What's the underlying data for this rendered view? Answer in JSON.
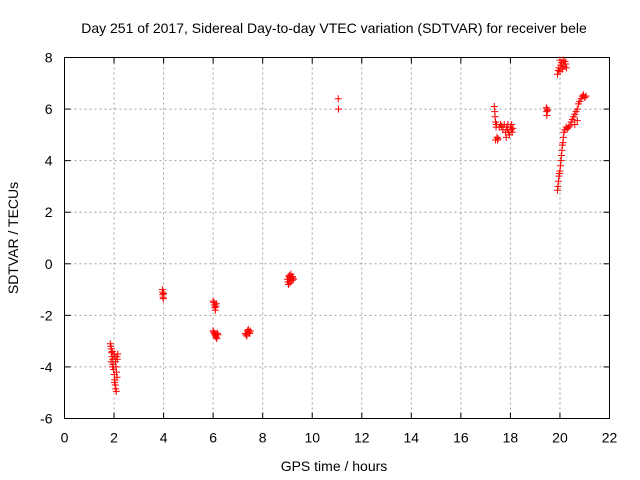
{
  "chart_data": {
    "type": "scatter",
    "title": "Day 251 of 2017, Sidereal Day-to-day VTEC variation (SDTVAR) for receiver bele",
    "xlabel": "GPS time / hours",
    "ylabel": "SDTVAR / TECUs",
    "xlim": [
      0,
      22
    ],
    "ylim": [
      -6,
      8
    ],
    "x_ticks": [
      "0",
      "2",
      "4",
      "6",
      "8",
      "10",
      "12",
      "14",
      "16",
      "18",
      "20",
      "22"
    ],
    "y_ticks": [
      "-6",
      "-4",
      "-2",
      "0",
      "2",
      "4",
      "6",
      "8"
    ],
    "grid": true,
    "marker": "+",
    "color": "#ff0000",
    "series": [
      {
        "name": "SDTVAR",
        "points": [
          [
            1.85,
            -3.1
          ],
          [
            1.87,
            -3.2
          ],
          [
            1.89,
            -3.3
          ],
          [
            1.9,
            -3.45
          ],
          [
            1.92,
            -3.6
          ],
          [
            1.93,
            -3.4
          ],
          [
            1.95,
            -3.7
          ],
          [
            1.96,
            -3.9
          ],
          [
            1.98,
            -4.1
          ],
          [
            2.0,
            -3.5
          ],
          [
            2.01,
            -4.3
          ],
          [
            2.03,
            -4.5
          ],
          [
            2.04,
            -3.6
          ],
          [
            2.05,
            -4.7
          ],
          [
            2.06,
            -3.8
          ],
          [
            2.07,
            -4.85
          ],
          [
            2.08,
            -4.0
          ],
          [
            2.09,
            -4.95
          ],
          [
            2.1,
            -4.2
          ],
          [
            2.11,
            -3.6
          ],
          [
            2.12,
            -4.4
          ],
          [
            2.13,
            -3.7
          ],
          [
            2.15,
            -3.5
          ],
          [
            1.88,
            -3.8
          ],
          [
            1.94,
            -4.0
          ],
          [
            2.02,
            -4.6
          ],
          [
            3.95,
            -1.0
          ],
          [
            3.96,
            -1.1
          ],
          [
            3.97,
            -1.2
          ],
          [
            3.98,
            -1.3
          ],
          [
            3.99,
            -1.35
          ],
          [
            4.0,
            -1.15
          ],
          [
            6.0,
            -1.45
          ],
          [
            6.03,
            -1.5
          ],
          [
            6.05,
            -1.6
          ],
          [
            6.07,
            -1.7
          ],
          [
            6.09,
            -1.8
          ],
          [
            6.11,
            -1.65
          ],
          [
            6.13,
            -1.55
          ],
          [
            6.0,
            -2.6
          ],
          [
            6.02,
            -2.65
          ],
          [
            6.05,
            -2.7
          ],
          [
            6.07,
            -2.75
          ],
          [
            6.1,
            -2.8
          ],
          [
            6.12,
            -2.85
          ],
          [
            6.15,
            -2.9
          ],
          [
            6.17,
            -2.7
          ],
          [
            6.2,
            -2.75
          ],
          [
            7.3,
            -2.7
          ],
          [
            7.33,
            -2.75
          ],
          [
            7.36,
            -2.8
          ],
          [
            7.39,
            -2.6
          ],
          [
            7.42,
            -2.55
          ],
          [
            7.45,
            -2.65
          ],
          [
            7.48,
            -2.7
          ],
          [
            7.5,
            -2.6
          ],
          [
            9.0,
            -0.6
          ],
          [
            9.02,
            -0.7
          ],
          [
            9.04,
            -0.8
          ],
          [
            9.06,
            -0.5
          ],
          [
            9.08,
            -0.45
          ],
          [
            9.1,
            -0.55
          ],
          [
            9.12,
            -0.6
          ],
          [
            9.14,
            -0.4
          ],
          [
            9.16,
            -0.5
          ],
          [
            9.18,
            -0.65
          ],
          [
            9.2,
            -0.5
          ],
          [
            9.22,
            -0.55
          ],
          [
            9.24,
            -0.6
          ],
          [
            9.1,
            -0.75
          ],
          [
            11.05,
            6.4
          ],
          [
            11.06,
            6.0
          ],
          [
            17.35,
            6.1
          ],
          [
            17.37,
            5.9
          ],
          [
            17.38,
            5.7
          ],
          [
            17.4,
            5.5
          ],
          [
            17.42,
            5.3
          ],
          [
            17.44,
            5.4
          ],
          [
            17.46,
            4.9
          ],
          [
            17.48,
            4.8
          ],
          [
            17.5,
            4.85
          ],
          [
            17.55,
            5.3
          ],
          [
            17.6,
            5.4
          ],
          [
            17.65,
            5.35
          ],
          [
            17.7,
            5.2
          ],
          [
            17.75,
            5.4
          ],
          [
            17.8,
            5.1
          ],
          [
            17.83,
            4.9
          ],
          [
            17.85,
            5.3
          ],
          [
            17.88,
            5.2
          ],
          [
            17.9,
            5.4
          ],
          [
            17.93,
            5.1
          ],
          [
            17.96,
            5.0
          ],
          [
            18.0,
            5.3
          ],
          [
            18.03,
            5.2
          ],
          [
            18.05,
            5.4
          ],
          [
            18.07,
            5.1
          ],
          [
            18.1,
            5.25
          ],
          [
            17.4,
            4.8
          ],
          [
            19.45,
            6.05
          ],
          [
            19.46,
            5.9
          ],
          [
            19.47,
            5.75
          ],
          [
            19.48,
            6.0
          ],
          [
            19.5,
            5.95
          ],
          [
            19.9,
            7.35
          ],
          [
            19.93,
            7.5
          ],
          [
            19.96,
            7.6
          ],
          [
            20.0,
            7.45
          ],
          [
            20.03,
            7.7
          ],
          [
            20.06,
            7.8
          ],
          [
            20.1,
            7.55
          ],
          [
            20.13,
            7.9
          ],
          [
            20.16,
            7.65
          ],
          [
            20.2,
            7.85
          ],
          [
            20.23,
            7.75
          ],
          [
            20.26,
            7.6
          ],
          [
            20.0,
            7.9
          ],
          [
            19.9,
            2.85
          ],
          [
            19.92,
            3.0
          ],
          [
            19.94,
            3.2
          ],
          [
            19.96,
            3.4
          ],
          [
            19.98,
            3.5
          ],
          [
            20.0,
            3.6
          ],
          [
            20.02,
            3.8
          ],
          [
            20.04,
            4.0
          ],
          [
            20.06,
            4.2
          ],
          [
            20.08,
            4.4
          ],
          [
            20.1,
            4.6
          ],
          [
            20.12,
            4.7
          ],
          [
            20.14,
            4.9
          ],
          [
            20.16,
            5.1
          ],
          [
            20.2,
            5.2
          ],
          [
            20.25,
            5.3
          ],
          [
            20.3,
            5.25
          ],
          [
            20.35,
            5.3
          ],
          [
            20.4,
            5.35
          ],
          [
            20.45,
            5.5
          ],
          [
            20.5,
            5.6
          ],
          [
            20.55,
            5.7
          ],
          [
            20.6,
            5.8
          ],
          [
            20.65,
            5.9
          ],
          [
            20.7,
            6.0
          ],
          [
            20.75,
            6.2
          ],
          [
            20.8,
            6.3
          ],
          [
            20.85,
            6.4
          ],
          [
            20.9,
            6.5
          ],
          [
            20.95,
            6.55
          ],
          [
            21.0,
            6.45
          ],
          [
            21.05,
            6.5
          ],
          [
            20.6,
            5.4
          ],
          [
            20.7,
            5.55
          ]
        ]
      }
    ]
  }
}
